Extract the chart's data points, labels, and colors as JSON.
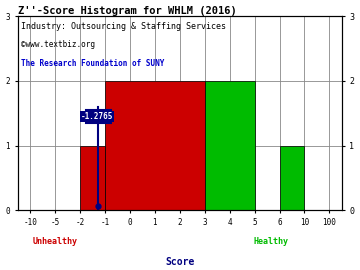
{
  "title": "Z''-Score Histogram for WHLM (2016)",
  "subtitle": "Industry: Outsourcing & Staffing Services",
  "watermark1": "©www.textbiz.org",
  "watermark2": "The Research Foundation of SUNY",
  "xlabel": "Score",
  "xtick_values": [
    -10,
    -5,
    -2,
    -1,
    0,
    1,
    2,
    3,
    4,
    5,
    6,
    10,
    100
  ],
  "bars": [
    {
      "x_left_val": -2,
      "x_right_val": -1,
      "height": 1,
      "color": "#cc0000"
    },
    {
      "x_left_val": -1,
      "x_right_val": 3,
      "height": 2,
      "color": "#cc0000"
    },
    {
      "x_left_val": 3,
      "x_right_val": 5,
      "height": 2,
      "color": "#00bb00"
    },
    {
      "x_left_val": 6,
      "x_right_val": 10,
      "height": 1,
      "color": "#00bb00"
    }
  ],
  "marker_val": -1.2765,
  "marker_label": "-1.2765",
  "ylim": [
    0,
    3
  ],
  "yticks": [
    0,
    1,
    2,
    3
  ],
  "unhealthy_label": "Unhealthy",
  "healthy_label": "Healthy",
  "score_label": "Score",
  "title_color": "#000000",
  "subtitle_color": "#000000",
  "watermark1_color": "#000000",
  "watermark2_color": "#0000cc",
  "unhealthy_color": "#cc0000",
  "healthy_color": "#00bb00",
  "score_color": "#000080",
  "marker_color": "#000080",
  "grid_color": "#888888",
  "bg_color": "#ffffff",
  "font_family": "monospace"
}
